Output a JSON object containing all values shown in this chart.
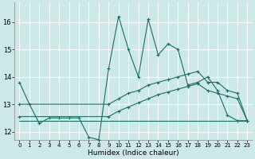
{
  "xlabel": "Humidex (Indice chaleur)",
  "xlim": [
    -0.5,
    23.5
  ],
  "ylim": [
    11.7,
    16.7
  ],
  "yticks": [
    12,
    13,
    14,
    15,
    16
  ],
  "xticks": [
    0,
    1,
    2,
    3,
    4,
    5,
    6,
    7,
    8,
    9,
    10,
    11,
    12,
    13,
    14,
    15,
    16,
    17,
    18,
    19,
    20,
    21,
    22,
    23
  ],
  "bg_color": "#cce8e8",
  "line_color": "#1a7060",
  "grid_color": "#ffffff",
  "line1_x": [
    0,
    1,
    2,
    3,
    4,
    5,
    6,
    7,
    8,
    9,
    10,
    11,
    12,
    13,
    14,
    15,
    16,
    17,
    18,
    19,
    20,
    21,
    22,
    23
  ],
  "line1_y": [
    13.8,
    13.0,
    12.3,
    12.5,
    12.5,
    12.5,
    12.5,
    11.8,
    11.7,
    14.3,
    16.2,
    15.0,
    14.0,
    16.1,
    14.8,
    15.2,
    15.0,
    13.7,
    13.8,
    14.0,
    13.5,
    12.6,
    12.4,
    12.4
  ],
  "line2_x": [
    0,
    9,
    10,
    11,
    12,
    13,
    14,
    15,
    16,
    17,
    18,
    19,
    20,
    21,
    22,
    23
  ],
  "line2_y": [
    13.0,
    13.0,
    13.2,
    13.4,
    13.5,
    13.7,
    13.8,
    13.9,
    14.0,
    14.1,
    14.2,
    13.8,
    13.8,
    13.5,
    13.4,
    12.4
  ],
  "line3_x": [
    0,
    9,
    10,
    11,
    12,
    13,
    14,
    15,
    16,
    17,
    18,
    19,
    20,
    21,
    22,
    23
  ],
  "line3_y": [
    12.55,
    12.55,
    12.75,
    12.9,
    13.05,
    13.2,
    13.35,
    13.45,
    13.55,
    13.65,
    13.75,
    13.5,
    13.4,
    13.3,
    13.2,
    12.4
  ],
  "line4_x": [
    0,
    19,
    23
  ],
  "line4_y": [
    12.4,
    12.4,
    12.4
  ]
}
